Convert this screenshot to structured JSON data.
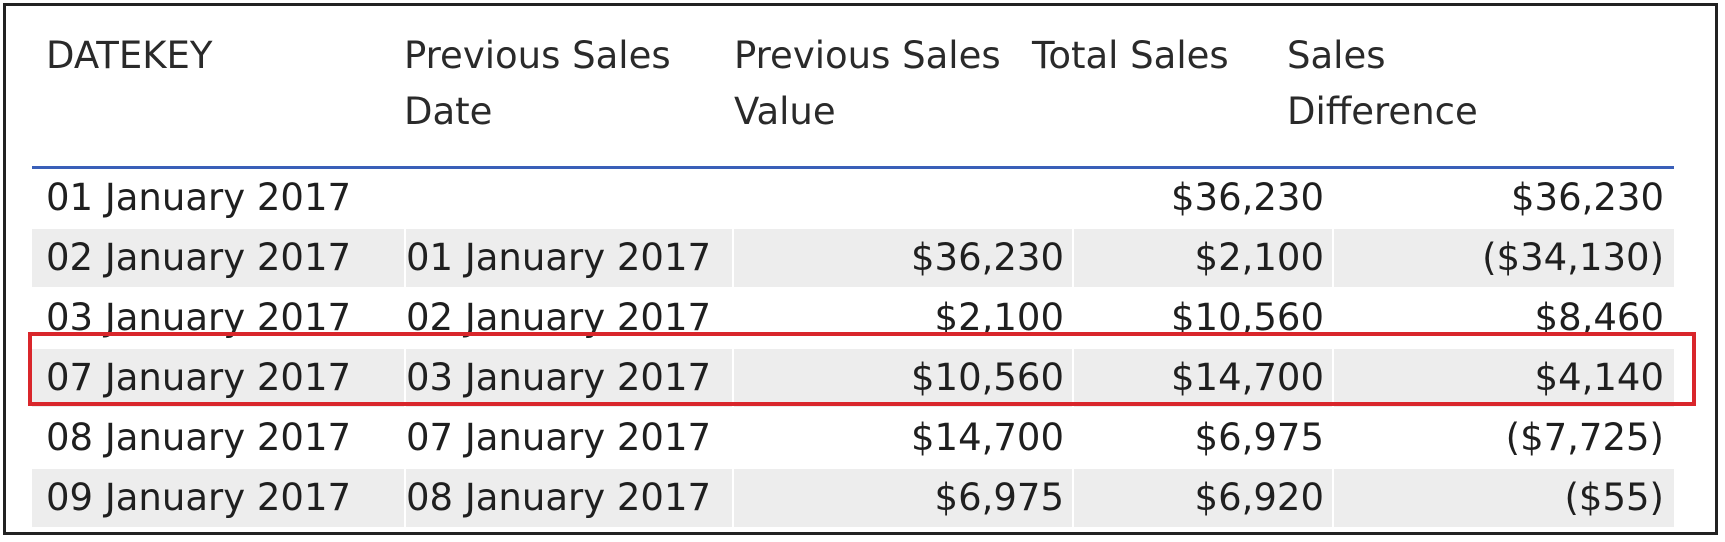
{
  "table": {
    "columns": [
      {
        "label": "DATEKEY"
      },
      {
        "label": "Previous Sales Date"
      },
      {
        "label": "Previous Sales Value"
      },
      {
        "label": "Total Sales"
      },
      {
        "label": "Sales Difference"
      }
    ],
    "rows": [
      [
        "01 January 2017",
        "",
        "",
        "$36,230",
        "$36,230"
      ],
      [
        "02 January 2017",
        "01 January 2017",
        "$36,230",
        "$2,100",
        "($34,130)"
      ],
      [
        "03 January 2017",
        "02 January 2017",
        "$2,100",
        "$10,560",
        "$8,460"
      ],
      [
        "07 January 2017",
        "03 January 2017",
        "$10,560",
        "$14,700",
        "$4,140"
      ],
      [
        "08 January 2017",
        "07 January 2017",
        "$14,700",
        "$6,975",
        "($7,725)"
      ],
      [
        "09 January 2017",
        "08 January 2017",
        "$6,975",
        "$6,920",
        "($55)"
      ]
    ],
    "highlighted_row_index": 3
  },
  "colors": {
    "header_rule": "#3a5fb8",
    "shaded_row": "#ededed",
    "highlight_border": "#d9262b",
    "frame": "#222222"
  }
}
